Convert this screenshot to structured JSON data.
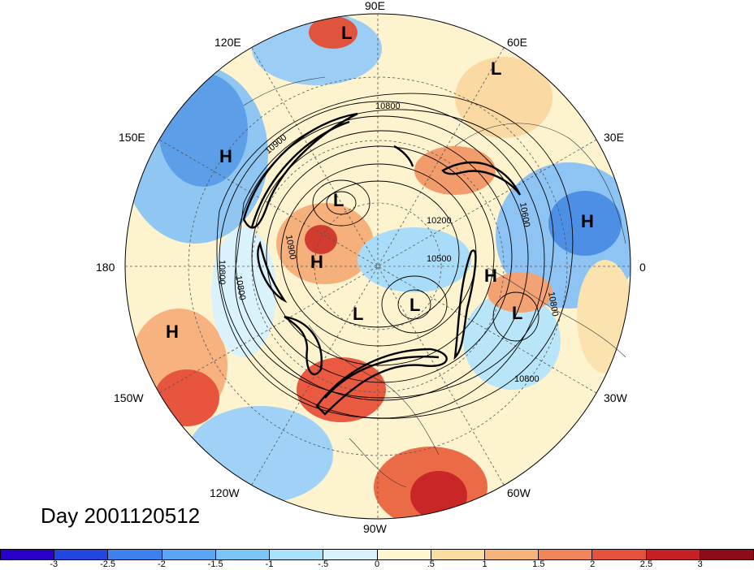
{
  "date_label": "Day 2001120512",
  "longitude_labels": [
    "90E",
    "60E",
    "30E",
    "0",
    "30W",
    "60W",
    "90W",
    "120W",
    "150W",
    "180",
    "150E",
    "120E"
  ],
  "pressure_centers": [
    {
      "type": "L"
    },
    {
      "type": "L"
    },
    {
      "type": "H"
    },
    {
      "type": "H"
    },
    {
      "type": "L"
    },
    {
      "type": "H"
    },
    {
      "type": "H"
    },
    {
      "type": "L"
    },
    {
      "type": "L"
    },
    {
      "type": "L"
    },
    {
      "type": "H"
    }
  ],
  "contour_labels": [
    "10800",
    "10900",
    "10800",
    "10200",
    "10600",
    "10800",
    "10800",
    "10800",
    "10900",
    "10500"
  ],
  "colorbar": {
    "colors": [
      "#2a00c8",
      "#2246e0",
      "#3d80ee",
      "#5aa6f5",
      "#7cc5f8",
      "#a8e2fb",
      "#d8f3fb",
      "#fdf6cf",
      "#fbdca0",
      "#f6b47c",
      "#ef8559",
      "#e4523d",
      "#c62025",
      "#8e0b1a"
    ],
    "labels": [
      "-3",
      "-2.5",
      "-2",
      "-1.5",
      "-1",
      "-.5",
      "0",
      ".5",
      "1",
      "1.5",
      "2",
      "2.5",
      "3"
    ]
  }
}
